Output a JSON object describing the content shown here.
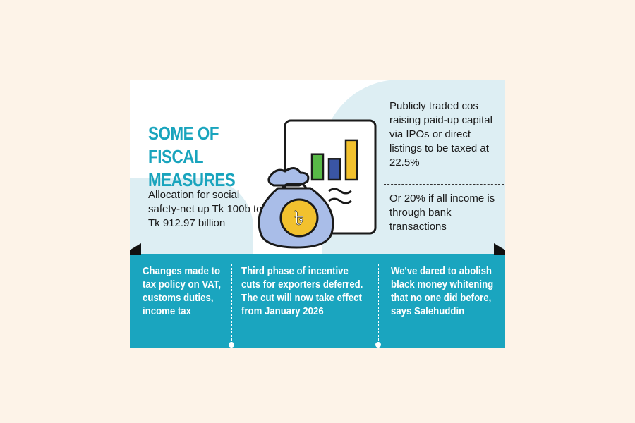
{
  "title": "SOME OF FISCAL MEASURES",
  "allocation_text": "Allocation for social safety-net up Tk 100b to Tk 912.97 billion",
  "ipo_text": "Publicly traded cos raising paid-up capital via IPOs or direct listings to be taxed at 22.5%",
  "bank_text": "Or 20% if all income is through bank transactions",
  "bottom": [
    "Changes made to tax policy on VAT, customs duties, income tax",
    "Third phase of incentive cuts for exporters deferred. The cut will now take effect from January 2026",
    "We've dared to abolish black money whitening that no one did before, says Salehuddin"
  ],
  "currency_symbol": "৳",
  "illustration": {
    "icons": [
      "money-bag-icon",
      "bar-chart-document-icon"
    ],
    "bar_colors": [
      "#58b947",
      "#3a55a4",
      "#f2c12e"
    ],
    "bar_levels": [
      0.55,
      0.45,
      0.85
    ]
  },
  "colors": {
    "accent": "#1aa5bf",
    "title": "#19a4bd",
    "blob": "#ddeef3",
    "background": "#fdf3e8",
    "coin": "#f2c12e",
    "bag": "#a9bde8"
  }
}
